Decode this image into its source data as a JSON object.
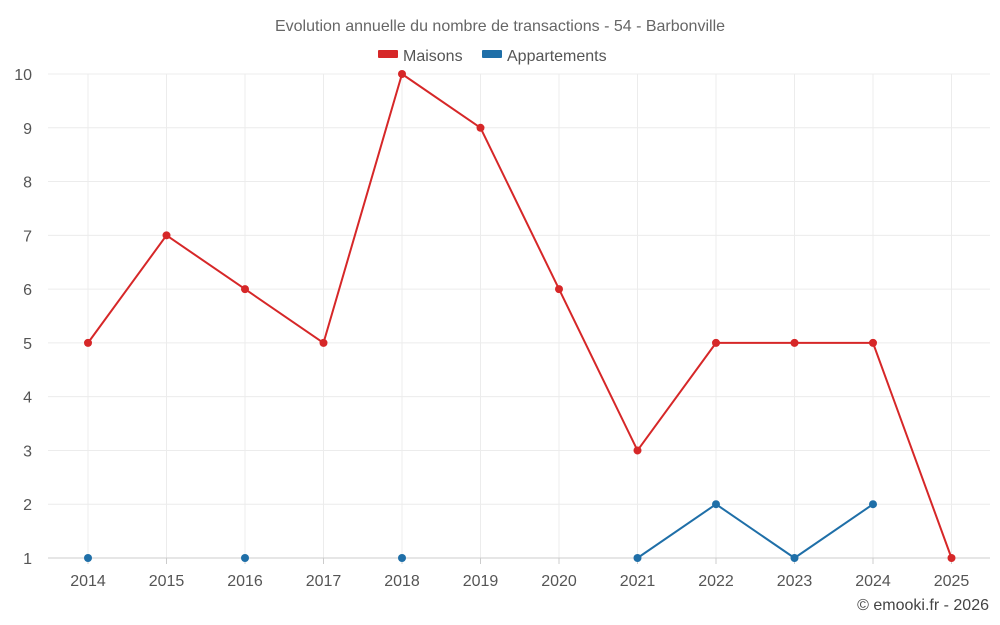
{
  "chart_data": {
    "type": "line",
    "title": "Evolution annuelle du nombre de transactions - 54 - Barbonville",
    "categories": [
      "2014",
      "2015",
      "2016",
      "2017",
      "2018",
      "2019",
      "2020",
      "2021",
      "2022",
      "2023",
      "2024",
      "2025"
    ],
    "series": [
      {
        "name": "Maisons",
        "color": "#d62728",
        "values": [
          5,
          7,
          6,
          5,
          10,
          9,
          6,
          3,
          5,
          5,
          5,
          1
        ]
      },
      {
        "name": "Appartements",
        "color": "#1f6fa8",
        "values": [
          1,
          null,
          1,
          null,
          1,
          null,
          null,
          1,
          2,
          1,
          2,
          null
        ]
      }
    ],
    "ylim": [
      1,
      10
    ],
    "yticks": [
      "1",
      "2",
      "3",
      "4",
      "5",
      "6",
      "7",
      "8",
      "9",
      "10"
    ],
    "xlabel": "",
    "ylabel": "",
    "grid": true,
    "legend_position": "top-center"
  },
  "credit": "© emooki.fr - 2026"
}
